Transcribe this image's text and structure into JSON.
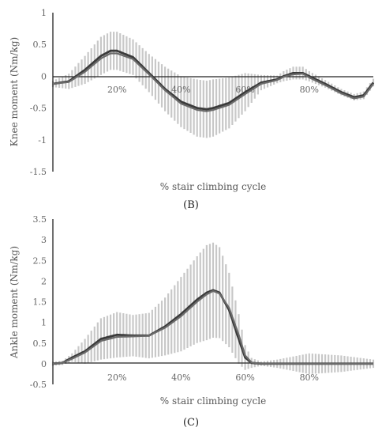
{
  "figure": {
    "panels": [
      "(B)",
      "(C)"
    ]
  },
  "chart_data": [
    {
      "type": "line",
      "panel_label": "(B)",
      "ylabel": "Knee moment (Nm/kg)",
      "xlabel": "% stair climbing cycle",
      "xlim": [
        0,
        100
      ],
      "ylim": [
        -1.5,
        1
      ],
      "yticks": [
        1,
        0.5,
        0,
        -0.5,
        -1,
        -1.5
      ],
      "ytick_labels": [
        "1",
        "0.5",
        "0",
        "-0.5",
        "-1",
        "-1.5"
      ],
      "xtick_labels": [
        "20%",
        "40%",
        "60%",
        "80%"
      ],
      "xtick_values": [
        20,
        40,
        60,
        80
      ],
      "grid": false,
      "colors": {
        "mean": "#3a3a3a",
        "mean2": "#6a6a6a",
        "band": "#c8c8c8"
      },
      "series": [
        {
          "x": [
            0,
            5,
            10,
            15,
            18,
            20,
            25,
            30,
            35,
            40,
            45,
            48,
            50,
            55,
            60,
            65,
            70,
            72,
            75,
            78,
            80,
            85,
            90,
            94,
            97,
            100
          ],
          "values": [
            -0.12,
            -0.08,
            0.1,
            0.32,
            0.4,
            0.4,
            0.3,
            0.05,
            -0.2,
            -0.4,
            -0.5,
            -0.52,
            -0.5,
            -0.42,
            -0.25,
            -0.1,
            -0.05,
            0,
            0.05,
            0.05,
            0,
            -0.12,
            -0.25,
            -0.33,
            -0.3,
            -0.1
          ]
        },
        {
          "x": [
            0,
            5,
            10,
            15,
            18,
            20,
            25,
            30,
            35,
            40,
            45,
            48,
            50,
            55,
            60,
            65,
            70,
            72,
            75,
            78,
            80,
            85,
            90,
            94,
            97,
            100
          ],
          "values": [
            -0.12,
            -0.09,
            0.07,
            0.28,
            0.36,
            0.36,
            0.27,
            0.03,
            -0.22,
            -0.43,
            -0.53,
            -0.55,
            -0.53,
            -0.45,
            -0.28,
            -0.12,
            -0.06,
            -0.01,
            0.03,
            0.04,
            -0.02,
            -0.14,
            -0.27,
            -0.35,
            -0.32,
            -0.12
          ]
        }
      ],
      "band_halfwidth": [
        0.05,
        0.12,
        0.22,
        0.3,
        0.3,
        0.3,
        0.28,
        0.3,
        0.35,
        0.4,
        0.45,
        0.45,
        0.45,
        0.4,
        0.3,
        0.12,
        0.06,
        0.08,
        0.1,
        0.1,
        0.08,
        0.06,
        0.05,
        0.05,
        0.06,
        0.06
      ]
    },
    {
      "type": "line",
      "panel_label": "(C)",
      "ylabel": "Ankle moment (Nm/kg)",
      "xlabel": "% stair climbing cycle",
      "xlim": [
        0,
        100
      ],
      "ylim": [
        -0.5,
        3.5
      ],
      "yticks": [
        3.5,
        3,
        2.5,
        2,
        1.5,
        1,
        0.5,
        0,
        -0.5
      ],
      "ytick_labels": [
        "3.5",
        "3",
        "2.5",
        "2",
        "1.5",
        "1",
        "0.5",
        "0",
        "-0.5"
      ],
      "xtick_labels": [
        "20%",
        "40%",
        "60%",
        "80%"
      ],
      "xtick_values": [
        20,
        40,
        60,
        80
      ],
      "grid": false,
      "colors": {
        "mean": "#3a3a3a",
        "mean2": "#6a6a6a",
        "band": "#c8c8c8"
      },
      "series": [
        {
          "x": [
            0,
            3,
            6,
            10,
            15,
            20,
            25,
            30,
            35,
            40,
            45,
            48,
            50,
            52,
            55,
            58,
            60,
            62,
            65,
            70,
            80,
            90,
            100
          ],
          "values": [
            0,
            0.02,
            0.15,
            0.3,
            0.6,
            0.7,
            0.68,
            0.68,
            0.9,
            1.2,
            1.55,
            1.72,
            1.78,
            1.72,
            1.3,
            0.6,
            0.15,
            0.02,
            0,
            0,
            0,
            0,
            0
          ]
        },
        {
          "x": [
            0,
            3,
            6,
            10,
            15,
            20,
            25,
            30,
            35,
            40,
            45,
            48,
            50,
            52,
            55,
            58,
            60,
            62,
            65,
            70,
            80,
            90,
            100
          ],
          "values": [
            0,
            0.02,
            0.12,
            0.27,
            0.55,
            0.65,
            0.66,
            0.68,
            0.87,
            1.15,
            1.5,
            1.68,
            1.76,
            1.7,
            1.35,
            0.7,
            0.2,
            0.03,
            0,
            0,
            0,
            0,
            0
          ]
        }
      ],
      "band_halfwidth": [
        0.05,
        0.05,
        0.1,
        0.3,
        0.5,
        0.55,
        0.5,
        0.55,
        0.7,
        0.9,
        1.05,
        1.15,
        1.15,
        1.1,
        0.9,
        0.6,
        0.3,
        0.12,
        0.05,
        0.1,
        0.25,
        0.2,
        0.1
      ]
    }
  ]
}
